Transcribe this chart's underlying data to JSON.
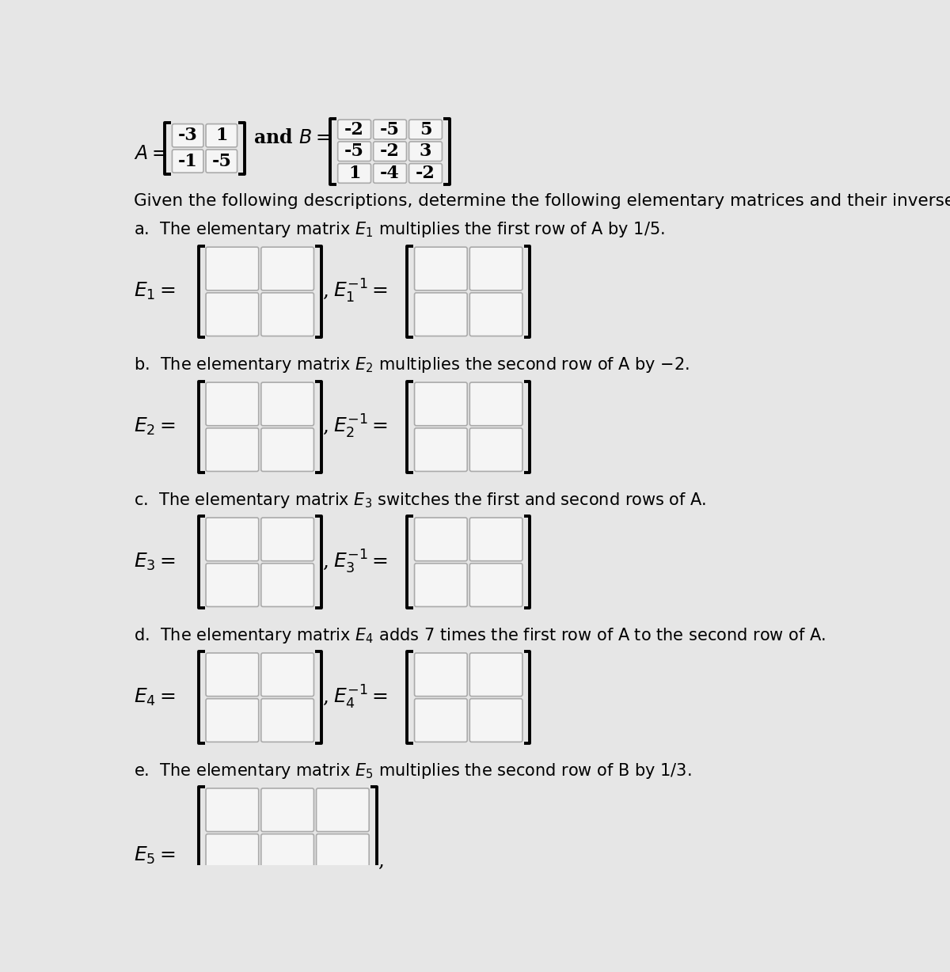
{
  "bg_color": "#e6e6e6",
  "cell_color": "#f5f5f5",
  "cell_border_color": "#aaaaaa",
  "bracket_color": "#000000",
  "text_color": "#000000",
  "matrix_A": [
    [
      -3,
      1
    ],
    [
      -1,
      -5
    ]
  ],
  "matrix_B": [
    [
      -2,
      -5,
      5
    ],
    [
      -5,
      -2,
      3
    ],
    [
      1,
      -4,
      -2
    ]
  ],
  "description": "Given the following descriptions, determine the following elementary matrices and their inverses.",
  "part_labels": [
    "a",
    "b",
    "c",
    "d",
    "e"
  ],
  "part_texts": [
    "The elementary matrix $E_1$ multiplies the first row of A by 1/5.",
    "The elementary matrix $E_2$ multiplies the second row of A by $-$2.",
    "The elementary matrix $E_3$ switches the first and second rows of A.",
    "The elementary matrix $E_4$ adds 7 times the first row of A to the second row of A.",
    "The elementary matrix $E_5$ multiplies the second row of B by 1/3."
  ],
  "E_labels": [
    "$E_1$",
    "$E_2$",
    "$E_3$",
    "$E_4$",
    "$E_5$"
  ],
  "has_inverse": [
    true,
    true,
    true,
    true,
    false
  ],
  "matrix_sizes": [
    [
      2,
      2
    ],
    [
      2,
      2
    ],
    [
      2,
      2
    ],
    [
      2,
      2
    ],
    [
      3,
      3
    ]
  ]
}
